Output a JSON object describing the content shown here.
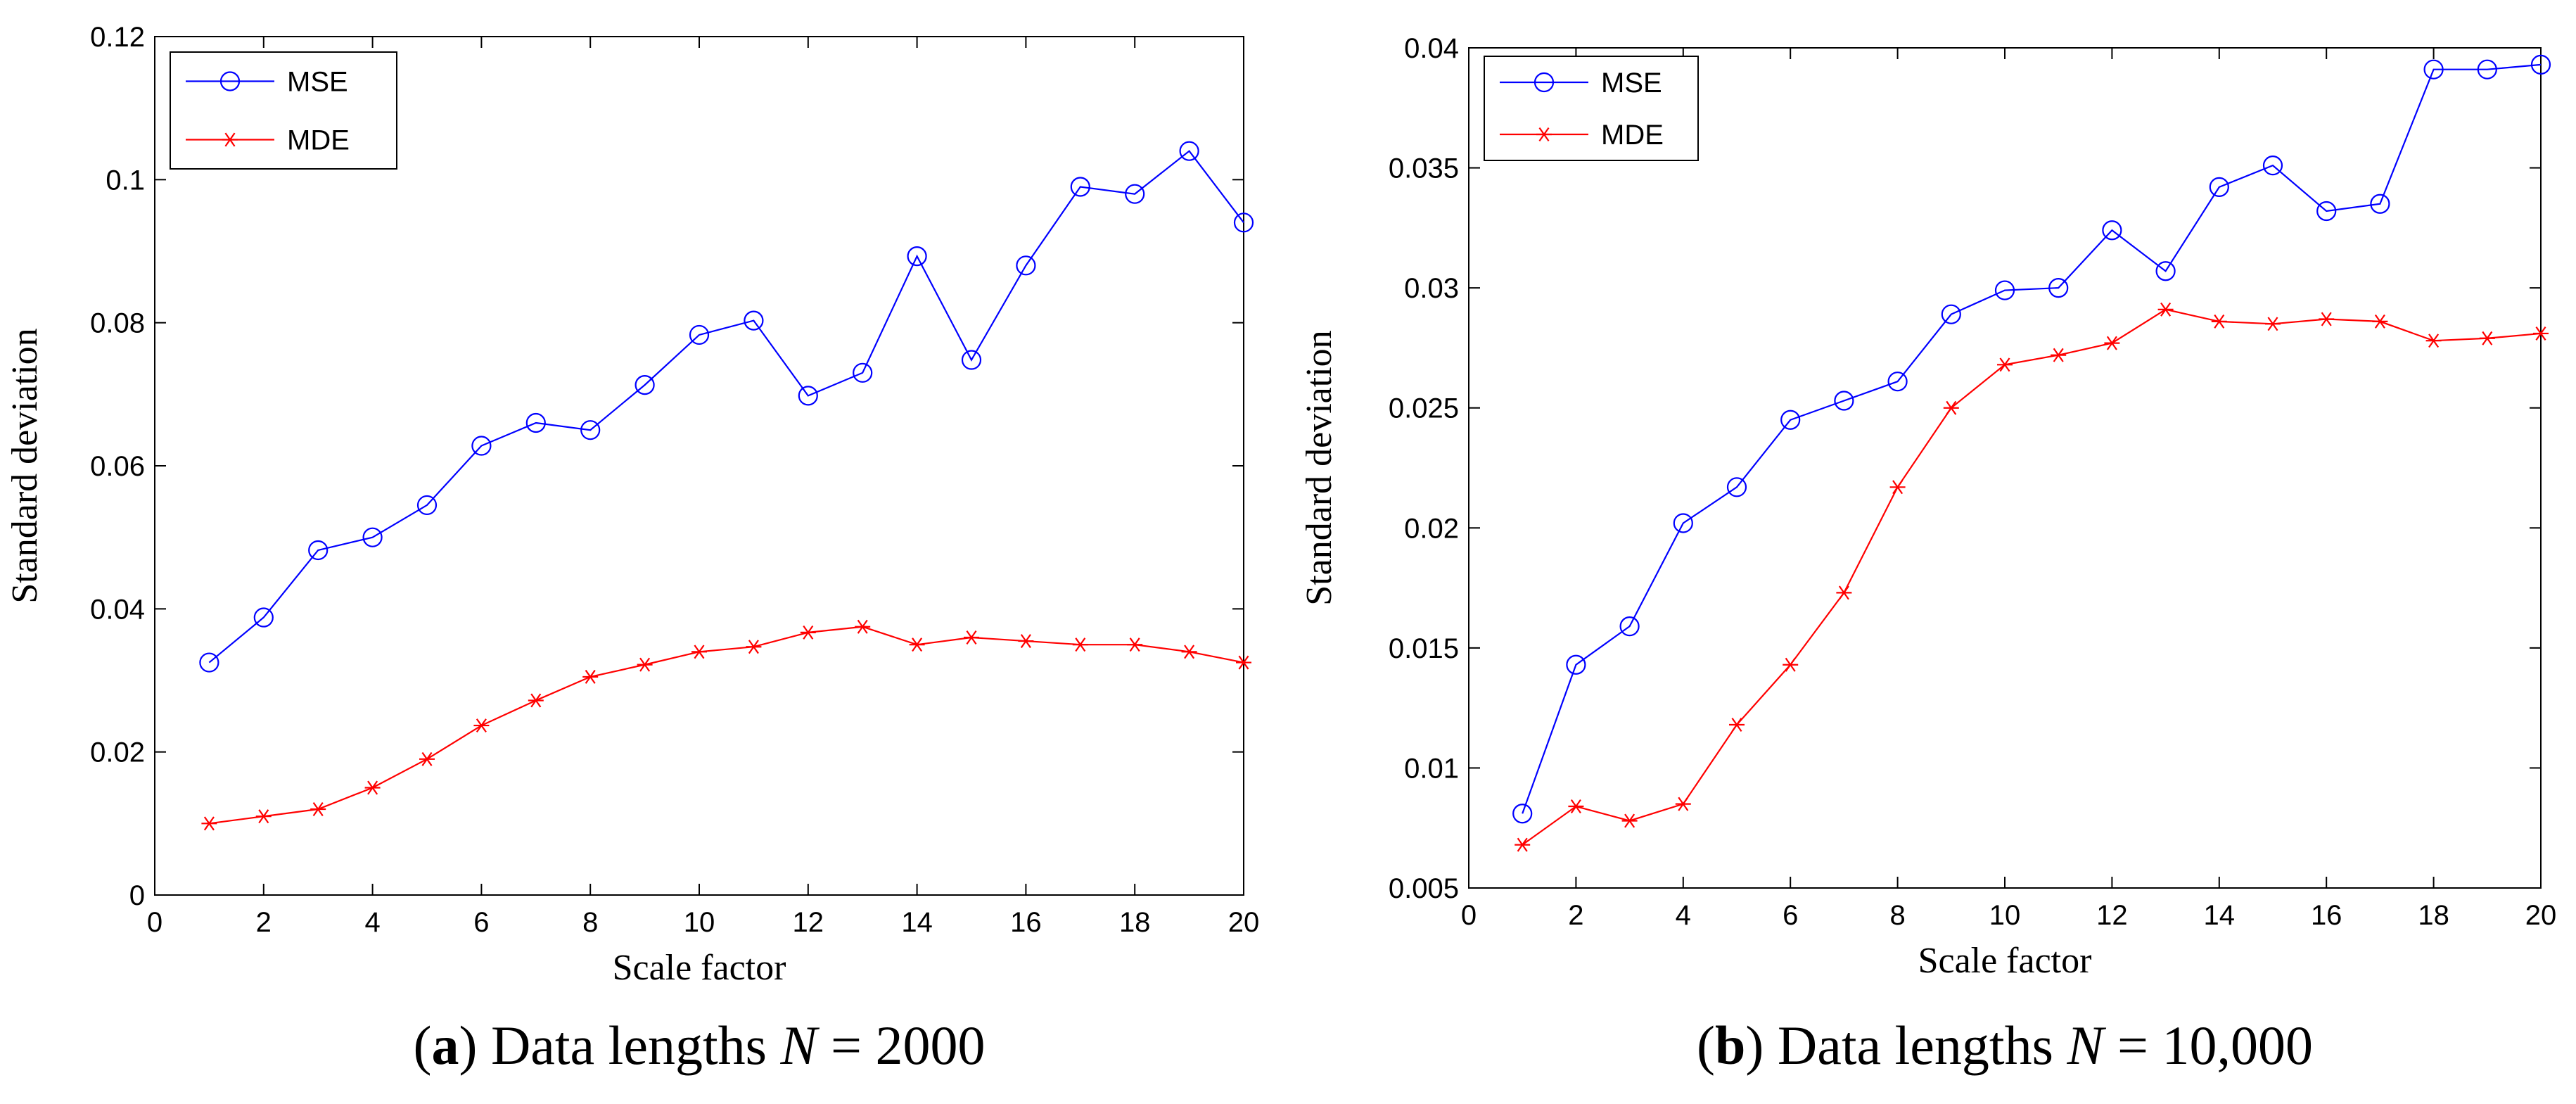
{
  "chart_data": [
    {
      "type": "line",
      "caption": {
        "letter": "a",
        "text": "Data lengths",
        "var": "N",
        "value": "= 2000"
      },
      "xlabel": "Scale factor",
      "ylabel": "Standard deviation",
      "xlim": [
        0,
        20
      ],
      "ylim": [
        0,
        0.12
      ],
      "xticks": [
        0,
        2,
        4,
        6,
        8,
        10,
        12,
        14,
        16,
        18,
        20
      ],
      "yticks": [
        0,
        0.02,
        0.04,
        0.06,
        0.08,
        0.1,
        0.12
      ],
      "ytick_labels": [
        "0",
        "0.02",
        "0.04",
        "0.06",
        "0.08",
        "0.1",
        "0.12"
      ],
      "x": [
        1,
        2,
        3,
        4,
        5,
        6,
        7,
        8,
        9,
        10,
        11,
        12,
        13,
        14,
        15,
        16,
        17,
        18,
        19,
        20
      ],
      "legend_position": "top-left",
      "series": [
        {
          "name": "MSE",
          "color": "#0000ff",
          "marker": "circle",
          "values": [
            0.0325,
            0.0388,
            0.0482,
            0.05,
            0.0545,
            0.0628,
            0.066,
            0.065,
            0.0713,
            0.0783,
            0.0803,
            0.0698,
            0.073,
            0.0893,
            0.0748,
            0.088,
            0.099,
            0.098,
            0.104,
            0.094
          ]
        },
        {
          "name": "MDE",
          "color": "#ff0000",
          "marker": "asterisk",
          "values": [
            0.01,
            0.011,
            0.012,
            0.015,
            0.019,
            0.0237,
            0.0272,
            0.0305,
            0.0322,
            0.034,
            0.0347,
            0.0367,
            0.0375,
            0.035,
            0.036,
            0.0355,
            0.035,
            0.035,
            0.034,
            0.0325
          ]
        }
      ]
    },
    {
      "type": "line",
      "caption": {
        "letter": "b",
        "text": "Data lengths",
        "var": "N",
        "value": "= 10,000"
      },
      "xlabel": "Scale factor",
      "ylabel": "Standard deviation",
      "xlim": [
        0,
        20
      ],
      "ylim": [
        0.005,
        0.04
      ],
      "xticks": [
        0,
        2,
        4,
        6,
        8,
        10,
        12,
        14,
        16,
        18,
        20
      ],
      "yticks": [
        0.005,
        0.01,
        0.015,
        0.02,
        0.025,
        0.03,
        0.035,
        0.04
      ],
      "ytick_labels": [
        "0.005",
        "0.01",
        "0.015",
        "0.02",
        "0.025",
        "0.03",
        "0.035",
        "0.04"
      ],
      "x": [
        1,
        2,
        3,
        4,
        5,
        6,
        7,
        8,
        9,
        10,
        11,
        12,
        13,
        14,
        15,
        16,
        17,
        18,
        19,
        20
      ],
      "legend_position": "top-left",
      "series": [
        {
          "name": "MSE",
          "color": "#0000ff",
          "marker": "circle",
          "values": [
            0.0081,
            0.0143,
            0.0159,
            0.0202,
            0.0217,
            0.0245,
            0.0253,
            0.0261,
            0.0289,
            0.0299,
            0.03,
            0.0324,
            0.0307,
            0.0342,
            0.0351,
            0.0332,
            0.0335,
            0.0391,
            0.0391,
            0.0393
          ]
        },
        {
          "name": "MDE",
          "color": "#ff0000",
          "marker": "asterisk",
          "values": [
            0.0068,
            0.0084,
            0.0078,
            0.0085,
            0.0118,
            0.0143,
            0.0173,
            0.0217,
            0.025,
            0.0268,
            0.0272,
            0.0277,
            0.0291,
            0.0286,
            0.0285,
            0.0287,
            0.0286,
            0.0278,
            0.0279,
            0.0281
          ]
        }
      ]
    }
  ]
}
